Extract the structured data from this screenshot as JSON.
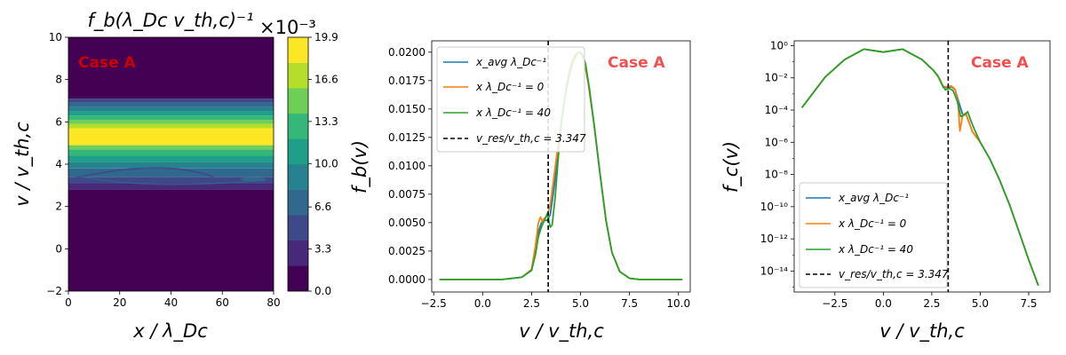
{
  "colors": {
    "blue": "#1f77b4",
    "orange": "#ff7f0e",
    "green": "#2ca02c",
    "case_left": "#cc0000",
    "case_right": "#f05050",
    "viridis": [
      "#440154",
      "#482878",
      "#3e4989",
      "#31688e",
      "#26828e",
      "#1f9e89",
      "#35b779",
      "#6ece58",
      "#b5de2b",
      "#fde725"
    ]
  },
  "chart_data": [
    {
      "type": "heatmap",
      "title": "$f_b(\\lambda_{Dc} v_{th,c})^{-1}$",
      "title_display": "f_b(λ_Dc v_th,c)⁻¹",
      "xlabel": "x / λ_Dc",
      "ylabel": "v / v_th,c",
      "xlim": [
        0,
        80
      ],
      "ylim": [
        -2,
        10
      ],
      "xticks": [
        "0",
        "20",
        "40",
        "60",
        "80"
      ],
      "yticks": [
        "−2",
        "0",
        "2",
        "4",
        "6",
        "8",
        "10"
      ],
      "annotation": "Case A",
      "colorbar": {
        "multiplier": "×10⁻³",
        "ticks": [
          "0.0",
          "3.3",
          "6.6",
          "10.0",
          "13.3",
          "16.6",
          "19.9"
        ],
        "levels": [
          0.0,
          3.3,
          6.6,
          10.0,
          13.3,
          16.6,
          19.9
        ]
      },
      "bands": [
        {
          "v_low": -2.0,
          "v_high": 2.8,
          "level": 0
        },
        {
          "v_low": 2.8,
          "v_high": 3.1,
          "level": 1
        },
        {
          "v_low": 3.1,
          "v_high": 3.4,
          "level": 2
        },
        {
          "v_low": 3.4,
          "v_high": 3.8,
          "level": 3
        },
        {
          "v_low": 3.8,
          "v_high": 4.1,
          "level": 4
        },
        {
          "v_low": 4.1,
          "v_high": 4.4,
          "level": 5
        },
        {
          "v_low": 4.4,
          "v_high": 4.7,
          "level": 6
        },
        {
          "v_low": 4.7,
          "v_high": 4.9,
          "level": 7
        },
        {
          "v_low": 4.9,
          "v_high": 5.7,
          "level": 9
        },
        {
          "v_low": 5.7,
          "v_high": 5.9,
          "level": 8
        },
        {
          "v_low": 5.9,
          "v_high": 6.1,
          "level": 7
        },
        {
          "v_low": 6.1,
          "v_high": 6.3,
          "level": 6
        },
        {
          "v_low": 6.3,
          "v_high": 6.5,
          "level": 5
        },
        {
          "v_low": 6.5,
          "v_high": 6.7,
          "level": 4
        },
        {
          "v_low": 6.7,
          "v_high": 6.9,
          "level": 3
        },
        {
          "v_low": 6.9,
          "v_high": 7.1,
          "level": 2
        },
        {
          "v_low": 7.1,
          "v_high": 10.0,
          "level": 0
        }
      ]
    },
    {
      "type": "line",
      "xlabel": "v / v_th,c",
      "ylabel": "f_b(v)",
      "xlim": [
        -2.6,
        10.6
      ],
      "ylim": [
        -0.0011,
        0.021
      ],
      "xticks": [
        -2.5,
        0.0,
        2.5,
        5.0,
        7.5,
        10.0
      ],
      "xtick_labels": [
        "−2.5",
        "0.0",
        "2.5",
        "5.0",
        "7.5",
        "10.0"
      ],
      "yticks": [
        0.0,
        0.0025,
        0.005,
        0.0075,
        0.01,
        0.0125,
        0.015,
        0.0175,
        0.02
      ],
      "ytick_labels": [
        "0.0000",
        "0.0025",
        "0.0050",
        "0.0075",
        "0.0100",
        "0.0125",
        "0.0150",
        "0.0175",
        "0.0200"
      ],
      "vline": 3.347,
      "annotation": "Case A",
      "legend_position": "upper-left",
      "legend": [
        "x_avg λ_Dc⁻¹",
        "x λ_Dc⁻¹ = 0",
        "x λ_Dc⁻¹ = 40",
        "v_res/v_th,c = 3.347"
      ],
      "series": [
        {
          "name": "x_avg λ_Dc⁻¹",
          "color_key": "blue",
          "x": [
            -2.2,
            1.0,
            2.0,
            2.5,
            2.7,
            2.85,
            3.0,
            3.15,
            3.3,
            3.45,
            3.6,
            3.75,
            3.9,
            4.1,
            4.3,
            4.5,
            4.7,
            4.9,
            5.05,
            5.2,
            5.4,
            5.7,
            6.0,
            6.3,
            6.6,
            7.0,
            7.5,
            8.0,
            10.2
          ],
          "y": [
            0.0,
            0.0,
            0.0002,
            0.0008,
            0.0025,
            0.0042,
            0.005,
            0.0052,
            0.0052,
            0.0057,
            0.0075,
            0.0095,
            0.012,
            0.0148,
            0.0172,
            0.0188,
            0.0197,
            0.02,
            0.0199,
            0.0191,
            0.0172,
            0.0135,
            0.0092,
            0.0052,
            0.0024,
            0.0007,
            0.0001,
            0.0,
            0.0
          ]
        },
        {
          "name": "x λ_Dc⁻¹ = 0",
          "color_key": "orange",
          "x": [
            -2.2,
            1.0,
            2.0,
            2.5,
            2.7,
            2.85,
            2.95,
            3.05,
            3.15,
            3.3,
            3.45,
            3.6,
            3.75,
            3.9,
            4.1,
            4.3,
            4.5,
            4.7,
            4.9,
            5.05,
            5.2,
            5.4,
            5.7,
            6.0,
            6.3,
            6.6,
            7.0,
            7.5,
            8.0,
            10.2
          ],
          "y": [
            0.0,
            0.0,
            0.0002,
            0.0009,
            0.003,
            0.005,
            0.0055,
            0.0051,
            0.0054,
            0.0056,
            0.0066,
            0.0085,
            0.0105,
            0.0125,
            0.015,
            0.0172,
            0.0188,
            0.0197,
            0.02,
            0.0199,
            0.0191,
            0.0172,
            0.0135,
            0.0092,
            0.0052,
            0.0024,
            0.0007,
            0.0001,
            0.0,
            0.0
          ]
        },
        {
          "name": "x λ_Dc⁻¹ = 40",
          "color_key": "green",
          "x": [
            -2.2,
            1.0,
            2.0,
            2.5,
            2.7,
            2.85,
            3.0,
            3.15,
            3.3,
            3.45,
            3.55,
            3.7,
            3.85,
            4.0,
            4.2,
            4.4,
            4.6,
            4.8,
            4.95,
            5.1,
            5.25,
            5.45,
            5.7,
            6.0,
            6.3,
            6.6,
            7.0,
            7.5,
            8.0,
            10.2
          ],
          "y": [
            0.0,
            0.0,
            0.0002,
            0.0008,
            0.0022,
            0.0038,
            0.0046,
            0.0052,
            0.0058,
            0.0046,
            0.0048,
            0.0072,
            0.0105,
            0.0135,
            0.016,
            0.0178,
            0.0191,
            0.0198,
            0.02,
            0.0198,
            0.019,
            0.0168,
            0.0135,
            0.0092,
            0.0052,
            0.0024,
            0.0007,
            0.0001,
            0.0,
            0.0
          ]
        }
      ]
    },
    {
      "type": "line",
      "xlabel": "v / v_th,c",
      "ylabel": "f_c(v)",
      "yscale": "log",
      "xlim": [
        -4.6,
        8.6
      ],
      "ylim_log10": [
        -15.3,
        0.3
      ],
      "xticks": [
        -2.5,
        0.0,
        2.5,
        5.0,
        7.5
      ],
      "xtick_labels": [
        "−2.5",
        "0.0",
        "2.5",
        "5.0",
        "7.5"
      ],
      "yticks_log10": [
        0,
        -2,
        -4,
        -6,
        -8,
        -10,
        -12,
        -14
      ],
      "ytick_labels": [
        "10⁰",
        "10⁻²",
        "10⁻⁴",
        "10⁻⁶",
        "10⁻⁸",
        "10⁻¹⁰",
        "10⁻¹²",
        "10⁻¹⁴"
      ],
      "vline": 3.347,
      "annotation": "Case A",
      "legend_position": "lower-left",
      "legend": [
        "x_avg λ_Dc⁻¹",
        "x λ_Dc⁻¹ = 0",
        "x λ_Dc⁻¹ = 40",
        "v_res/v_th,c = 3.347"
      ],
      "series": [
        {
          "name": "x_avg λ_Dc⁻¹",
          "color_key": "blue",
          "x": [
            -4.2,
            -3.0,
            -2.0,
            -1.0,
            0.0,
            1.0,
            2.0,
            2.6,
            2.9,
            3.1,
            3.3,
            3.5,
            3.7,
            3.9,
            4.1,
            4.25,
            4.4,
            4.6,
            5.0,
            5.5,
            6.0,
            6.5,
            7.0,
            7.5,
            8.0
          ],
          "y_log10": [
            -3.85,
            -1.95,
            -0.87,
            -0.22,
            -0.4,
            -0.22,
            -0.87,
            -1.55,
            -2.05,
            -2.6,
            -2.6,
            -2.55,
            -2.72,
            -3.55,
            -4.3,
            -4.2,
            -4.7,
            -5.35,
            -6.0,
            -7.05,
            -8.35,
            -9.85,
            -11.55,
            -13.3,
            -14.9
          ]
        },
        {
          "name": "x λ_Dc⁻¹ = 0",
          "color_key": "orange",
          "x": [
            -4.2,
            -3.0,
            -2.0,
            -1.0,
            0.0,
            1.0,
            2.0,
            2.6,
            2.9,
            3.1,
            3.3,
            3.5,
            3.7,
            3.85,
            3.95,
            4.1,
            4.25,
            4.4,
            4.6,
            5.0,
            5.5,
            6.0,
            6.5,
            7.0,
            7.5,
            8.0
          ],
          "y_log10": [
            -3.85,
            -1.95,
            -0.87,
            -0.22,
            -0.4,
            -0.22,
            -0.87,
            -1.55,
            -2.05,
            -2.55,
            -2.55,
            -2.5,
            -2.7,
            -3.5,
            -5.3,
            -4.3,
            -4.2,
            -4.7,
            -5.35,
            -6.0,
            -7.05,
            -8.35,
            -9.85,
            -11.55,
            -13.3,
            -14.9
          ]
        },
        {
          "name": "x λ_Dc⁻¹ = 40",
          "color_key": "green",
          "x": [
            -4.2,
            -3.0,
            -2.0,
            -1.0,
            0.0,
            1.0,
            2.0,
            2.6,
            2.8,
            3.0,
            3.2,
            3.4,
            3.6,
            3.8,
            4.0,
            4.2,
            4.35,
            4.5,
            4.7,
            5.0,
            5.5,
            6.0,
            6.5,
            7.0,
            7.5,
            8.0
          ],
          "y_log10": [
            -3.85,
            -1.95,
            -0.87,
            -0.22,
            -0.4,
            -0.22,
            -0.87,
            -1.55,
            -1.85,
            -2.35,
            -2.75,
            -2.65,
            -2.8,
            -3.4,
            -4.4,
            -4.3,
            -4.1,
            -4.6,
            -5.2,
            -6.0,
            -7.05,
            -8.35,
            -9.85,
            -11.55,
            -13.3,
            -14.9
          ]
        }
      ]
    }
  ]
}
